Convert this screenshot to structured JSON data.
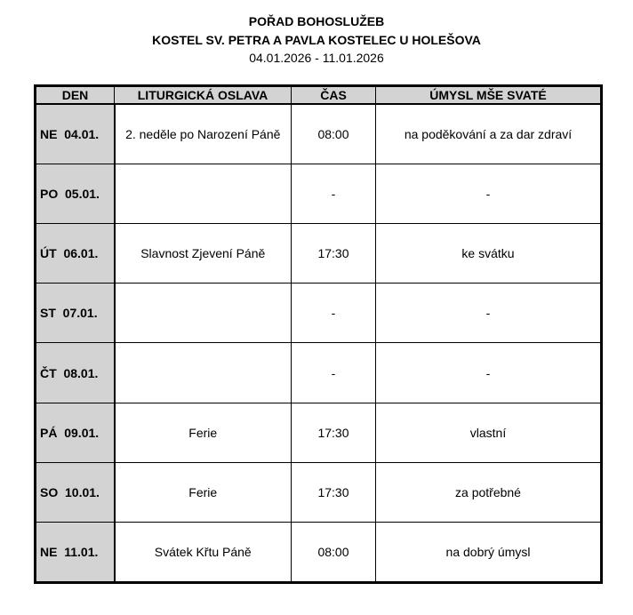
{
  "header": {
    "title": "POŘAD BOHOSLUŽEB",
    "church": "KOSTEL SV. PETRA A PAVLA KOSTELEC U HOLEŠOVA",
    "dates": "04.01.2026 - 11.01.2026"
  },
  "table": {
    "columns": [
      "DEN",
      "LITURGICKÁ OSLAVA",
      "ČAS",
      "ÚMYSL MŠE SVATÉ"
    ],
    "rows": [
      {
        "day": "NE  04.01.",
        "feast": "2. neděle po Narození Páně",
        "time": "08:00",
        "intention": "na poděkování a za dar zdraví"
      },
      {
        "day": "PO  05.01.",
        "feast": "",
        "time": "-",
        "intention": "-"
      },
      {
        "day": "ÚT  06.01.",
        "feast": "Slavnost Zjevení Páně",
        "time": "17:30",
        "intention": "ke svátku"
      },
      {
        "day": "ST  07.01.",
        "feast": "",
        "time": "-",
        "intention": "-"
      },
      {
        "day": "ČT  08.01.",
        "feast": "",
        "time": "-",
        "intention": "-"
      },
      {
        "day": "PÁ  09.01.",
        "feast": "Ferie",
        "time": "17:30",
        "intention": "vlastní"
      },
      {
        "day": "SO  10.01.",
        "feast": "Ferie",
        "time": "17:30",
        "intention": "za potřebné"
      },
      {
        "day": "NE  11.01.",
        "feast": "Svátek Křtu Páně",
        "time": "08:00",
        "intention": "na dobrý úmysl"
      }
    ]
  }
}
